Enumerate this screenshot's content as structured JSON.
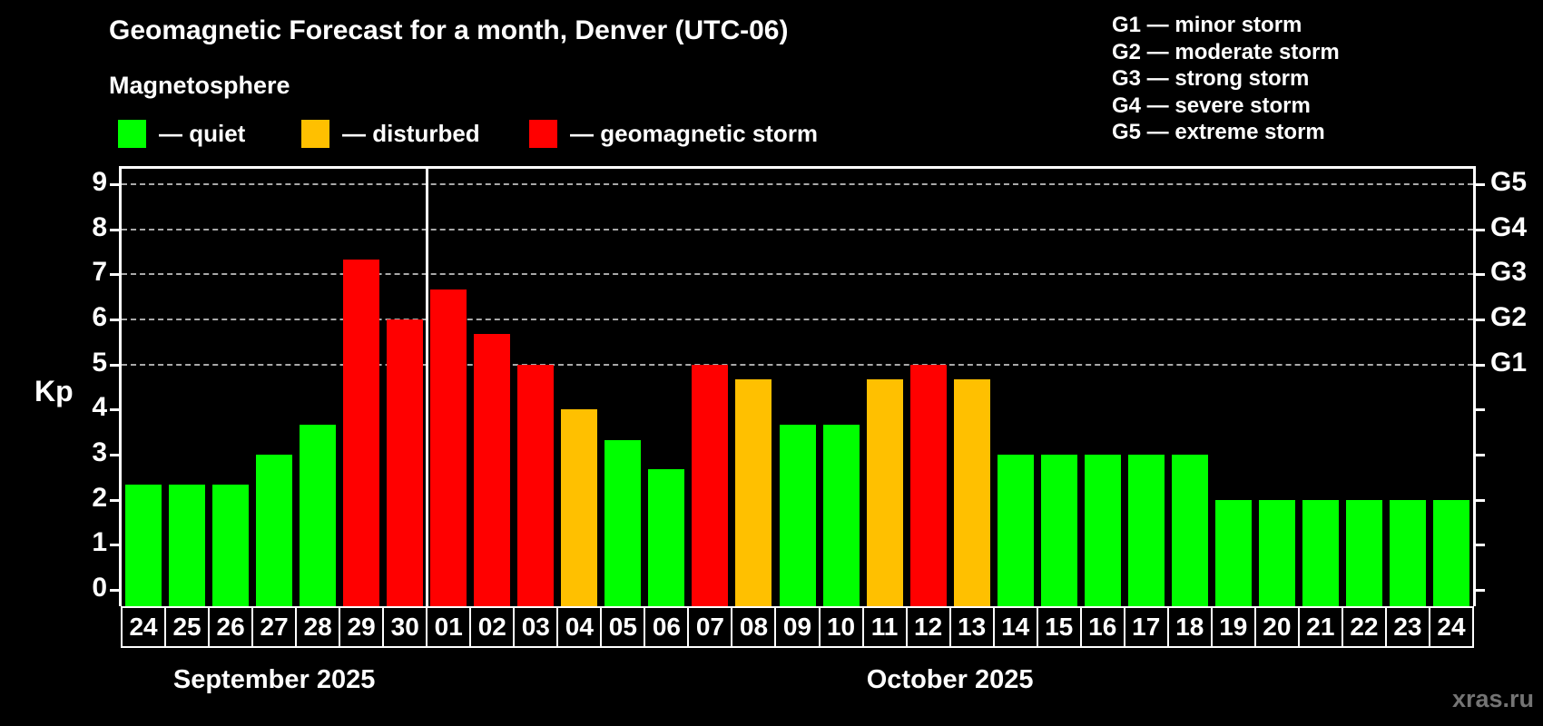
{
  "title": "Geomagnetic Forecast for a month, Denver (UTC-06)",
  "subtitle": "Magnetosphere",
  "kp_legend": [
    {
      "key": "quiet",
      "label": "— quiet",
      "color": "#00ff00"
    },
    {
      "key": "disturbed",
      "label": "— disturbed",
      "color": "#ffc000"
    },
    {
      "key": "storm",
      "label": "— geomagnetic storm",
      "color": "#ff0000"
    }
  ],
  "g_legend": [
    "G1 — minor storm",
    "G2 — moderate storm",
    "G3 — strong storm",
    "G4 — severe storm",
    "G5 — extreme storm"
  ],
  "watermark": "xras.ru",
  "chart_data": {
    "type": "bar",
    "ylabel": "Kp",
    "ylim": [
      0,
      9
    ],
    "yticks": [
      0,
      1,
      2,
      3,
      4,
      5,
      6,
      7,
      8,
      9
    ],
    "gridlines_kp": [
      5,
      6,
      7,
      8,
      9
    ],
    "grid_style": "dashed gray at storm levels only",
    "right_axis": [
      {
        "kp": 5,
        "label": "G1"
      },
      {
        "kp": 6,
        "label": "G2"
      },
      {
        "kp": 7,
        "label": "G3"
      },
      {
        "kp": 8,
        "label": "G4"
      },
      {
        "kp": 9,
        "label": "G5"
      }
    ],
    "months": [
      {
        "label": "September 2025",
        "days": [
          "24",
          "25",
          "26",
          "27",
          "28",
          "29",
          "30"
        ]
      },
      {
        "label": "October 2025",
        "days": [
          "01",
          "02",
          "03",
          "04",
          "05",
          "06",
          "07",
          "08",
          "09",
          "10",
          "11",
          "12",
          "13",
          "14",
          "15",
          "16",
          "17",
          "18",
          "19",
          "20",
          "21",
          "22",
          "23",
          "24"
        ]
      }
    ],
    "bars": [
      {
        "month": "September 2025",
        "day": "24",
        "kp": 2.33,
        "status": "quiet"
      },
      {
        "month": "September 2025",
        "day": "25",
        "kp": 2.33,
        "status": "quiet"
      },
      {
        "month": "September 2025",
        "day": "26",
        "kp": 2.33,
        "status": "quiet"
      },
      {
        "month": "September 2025",
        "day": "27",
        "kp": 3.0,
        "status": "quiet"
      },
      {
        "month": "September 2025",
        "day": "28",
        "kp": 3.67,
        "status": "quiet"
      },
      {
        "month": "September 2025",
        "day": "29",
        "kp": 7.33,
        "status": "storm"
      },
      {
        "month": "September 2025",
        "day": "30",
        "kp": 6.0,
        "status": "storm"
      },
      {
        "month": "October 2025",
        "day": "01",
        "kp": 6.67,
        "status": "storm"
      },
      {
        "month": "October 2025",
        "day": "02",
        "kp": 5.67,
        "status": "storm"
      },
      {
        "month": "October 2025",
        "day": "03",
        "kp": 5.0,
        "status": "storm"
      },
      {
        "month": "October 2025",
        "day": "04",
        "kp": 4.0,
        "status": "disturbed"
      },
      {
        "month": "October 2025",
        "day": "05",
        "kp": 3.33,
        "status": "quiet"
      },
      {
        "month": "October 2025",
        "day": "06",
        "kp": 2.67,
        "status": "quiet"
      },
      {
        "month": "October 2025",
        "day": "07",
        "kp": 5.0,
        "status": "storm"
      },
      {
        "month": "October 2025",
        "day": "08",
        "kp": 4.67,
        "status": "disturbed"
      },
      {
        "month": "October 2025",
        "day": "09",
        "kp": 3.67,
        "status": "quiet"
      },
      {
        "month": "October 2025",
        "day": "10",
        "kp": 3.67,
        "status": "quiet"
      },
      {
        "month": "October 2025",
        "day": "11",
        "kp": 4.67,
        "status": "disturbed"
      },
      {
        "month": "October 2025",
        "day": "12",
        "kp": 5.0,
        "status": "storm"
      },
      {
        "month": "October 2025",
        "day": "13",
        "kp": 4.67,
        "status": "disturbed"
      },
      {
        "month": "October 2025",
        "day": "14",
        "kp": 3.0,
        "status": "quiet"
      },
      {
        "month": "October 2025",
        "day": "15",
        "kp": 3.0,
        "status": "quiet"
      },
      {
        "month": "October 2025",
        "day": "16",
        "kp": 3.0,
        "status": "quiet"
      },
      {
        "month": "October 2025",
        "day": "17",
        "kp": 3.0,
        "status": "quiet"
      },
      {
        "month": "October 2025",
        "day": "18",
        "kp": 3.0,
        "status": "quiet"
      },
      {
        "month": "October 2025",
        "day": "19",
        "kp": 2.0,
        "status": "quiet"
      },
      {
        "month": "October 2025",
        "day": "20",
        "kp": 2.0,
        "status": "quiet"
      },
      {
        "month": "October 2025",
        "day": "21",
        "kp": 2.0,
        "status": "quiet"
      },
      {
        "month": "October 2025",
        "day": "22",
        "kp": 2.0,
        "status": "quiet"
      },
      {
        "month": "October 2025",
        "day": "23",
        "kp": 2.0,
        "status": "quiet"
      },
      {
        "month": "October 2025",
        "day": "24",
        "kp": 2.0,
        "status": "quiet"
      }
    ]
  }
}
